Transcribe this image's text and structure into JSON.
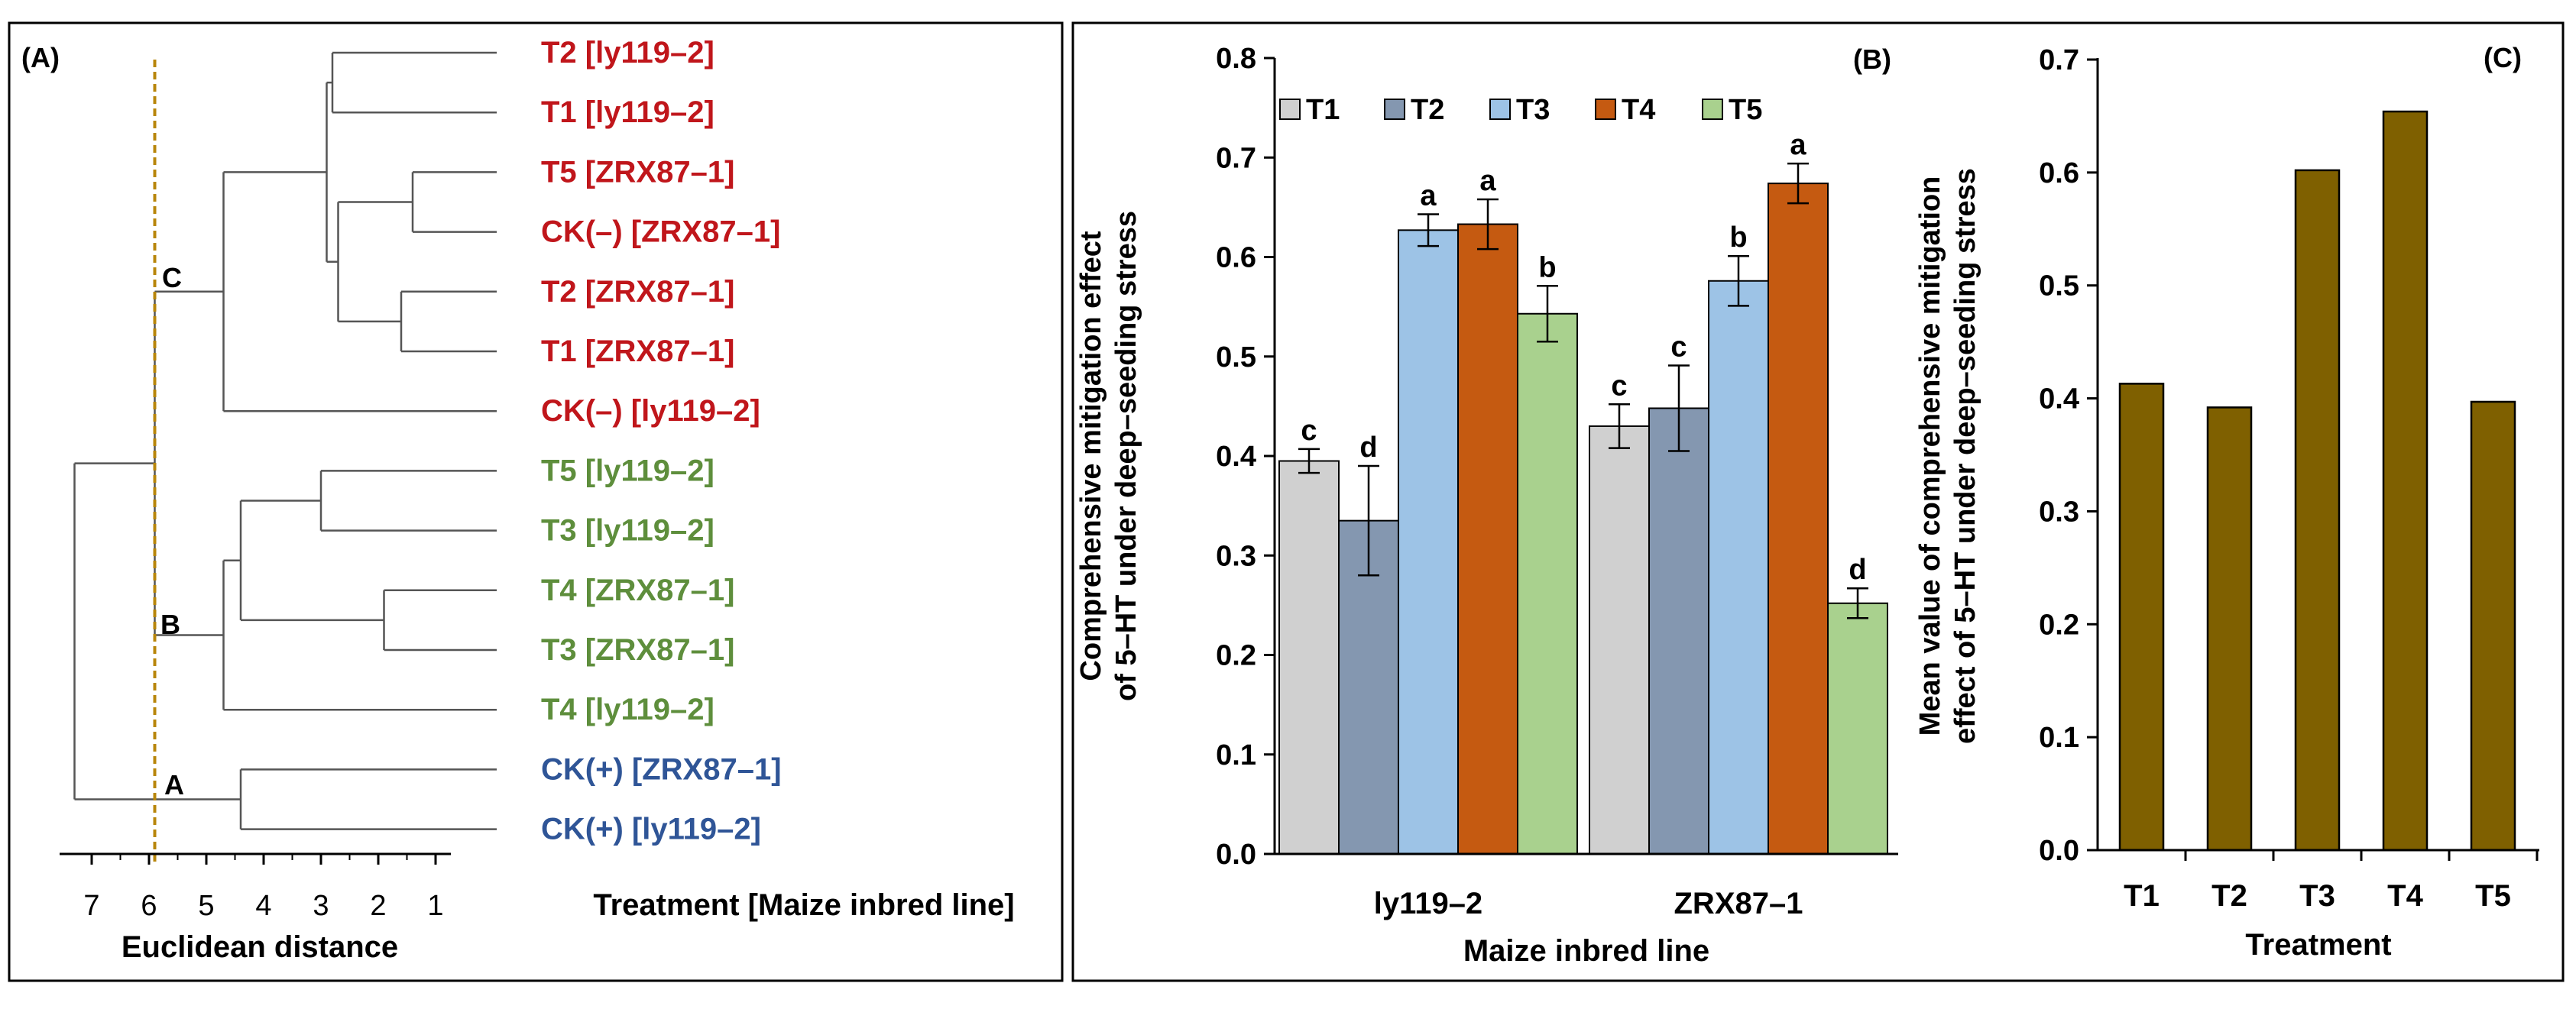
{
  "panel_a": {
    "label": "(A)",
    "x_axis_label": "Euclidean distance",
    "leaf_header": "Treatment [Maize inbred line]",
    "ticks": [
      "7",
      "6",
      "5",
      "4",
      "3",
      "2",
      "1"
    ],
    "cut_distance": 5.9,
    "cluster_labels": [
      "C",
      "B",
      "A"
    ],
    "leaves": [
      {
        "label": "T2 [ly119–2]",
        "group": "C"
      },
      {
        "label": "T1 [ly119–2]",
        "group": "C"
      },
      {
        "label": "T5 [ZRX87–1]",
        "group": "C"
      },
      {
        "label": "CK(–) [ZRX87–1]",
        "group": "C"
      },
      {
        "label": "T2 [ZRX87–1]",
        "group": "C"
      },
      {
        "label": "T1 [ZRX87–1]",
        "group": "C"
      },
      {
        "label": "CK(–) [ly119–2]",
        "group": "C"
      },
      {
        "label": "T5 [ly119–2]",
        "group": "B"
      },
      {
        "label": "T3 [ly119–2]",
        "group": "B"
      },
      {
        "label": "T4 [ZRX87–1]",
        "group": "B"
      },
      {
        "label": "T3 [ZRX87–1]",
        "group": "B"
      },
      {
        "label": "T4 [ly119–2]",
        "group": "B"
      },
      {
        "label": "CK(+) [ZRX87–1]",
        "group": "A"
      },
      {
        "label": "CK(+) [ly119–2]",
        "group": "A"
      }
    ],
    "colors": {
      "C": "#c0161b",
      "B": "#5e8e3c",
      "A": "#2f5597",
      "cut_line": "#b8860b"
    }
  },
  "chart_data": [
    {
      "type": "bar",
      "panel": "(B)",
      "title": "",
      "xlabel": "Maize inbred line",
      "ylabel": "Comprehensive mitigation effect of 5–HT under deep–seeding stress",
      "ylim": [
        0,
        0.8
      ],
      "ytick_labels": [
        "0.0",
        "0.1",
        "0.2",
        "0.3",
        "0.4",
        "0.5",
        "0.6",
        "0.7",
        "0.8"
      ],
      "categories": [
        "ly119–2",
        "ZRX87–1"
      ],
      "legend_position": "top-left",
      "series": [
        {
          "name": "T1",
          "color": "#d0d0d0",
          "values": [
            0.395,
            0.43
          ],
          "errors": [
            0.012,
            0.022
          ],
          "letters": [
            "c",
            "c"
          ]
        },
        {
          "name": "T2",
          "color": "#8497b0",
          "values": [
            0.335,
            0.448
          ],
          "errors": [
            0.055,
            0.043
          ],
          "letters": [
            "d",
            "c"
          ]
        },
        {
          "name": "T3",
          "color": "#9dc3e6",
          "values": [
            0.627,
            0.576
          ],
          "errors": [
            0.016,
            0.025
          ],
          "letters": [
            "a",
            "b"
          ]
        },
        {
          "name": "T4",
          "color": "#c55a11",
          "values": [
            0.633,
            0.674
          ],
          "errors": [
            0.025,
            0.02
          ],
          "letters": [
            "a",
            "a"
          ]
        },
        {
          "name": "T5",
          "color": "#a9d18e",
          "values": [
            0.543,
            0.252
          ],
          "errors": [
            0.028,
            0.015
          ],
          "letters": [
            "b",
            "d"
          ]
        }
      ]
    },
    {
      "type": "bar",
      "panel": "(C)",
      "title": "",
      "xlabel": "Treatment",
      "ylabel": "Mean value of comprehensive mitigation effect of 5–HT under deep–seeding stress",
      "ylim": [
        0,
        0.7
      ],
      "ytick_labels": [
        "0.0",
        "0.1",
        "0.2",
        "0.3",
        "0.4",
        "0.5",
        "0.6",
        "0.7"
      ],
      "categories": [
        "T1",
        "T2",
        "T3",
        "T4",
        "T5"
      ],
      "values": [
        0.413,
        0.392,
        0.602,
        0.654,
        0.397
      ],
      "color": "#7f6000"
    }
  ]
}
